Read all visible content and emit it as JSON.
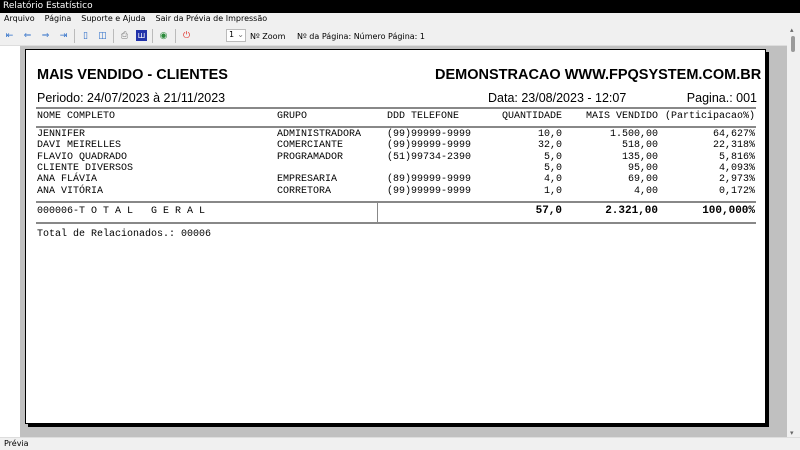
{
  "window": {
    "title": "Relatório Estatístico"
  },
  "menu": [
    "Arquivo",
    "Página",
    "Suporte e Ajuda",
    "Sair da Prévia de Impressão"
  ],
  "toolbar": {
    "zoom_value": "1",
    "zoom_label": "Nº Zoom",
    "page_info": "Nº da Página: Número Página: 1"
  },
  "report": {
    "title": "MAIS VENDIDO - CLIENTES",
    "company": "DEMONSTRACAO WWW.FPQSYSTEM.COM.BR",
    "period": "Periodo: 24/07/2023 à 21/11/2023",
    "date": "Data: 23/08/2023 - 12:07",
    "page": "Pagina.: 001",
    "columns": [
      "NOME COMPLETO",
      "GRUPO",
      "DDD TELEFONE",
      "QUANTIDADE",
      "MAIS VENDIDO",
      "(Participacao%)"
    ],
    "rows": [
      [
        "JENNIFER",
        "ADMINISTRADORA",
        "(99)99999-9999",
        "10,0",
        "1.500,00",
        "64,627%"
      ],
      [
        "DAVI MEIRELLES",
        "COMERCIANTE",
        "(99)99999-9999",
        "32,0",
        "518,00",
        "22,318%"
      ],
      [
        "FLAVIO QUADRADO",
        "PROGRAMADOR",
        "(51)99734-2390",
        "5,0",
        "135,00",
        "5,816%"
      ],
      [
        "CLIENTE DIVERSOS",
        "",
        "",
        "5,0",
        "95,00",
        "4,093%"
      ],
      [
        "ANA FLÁVIA",
        "EMPRESARIA",
        "(89)99999-9999",
        "4,0",
        "69,00",
        "2,973%"
      ],
      [
        "ANA VITÓRIA",
        "CORRETORA",
        "(99)99999-9999",
        "1,0",
        "4,00",
        "0,172%"
      ]
    ],
    "total": {
      "label": "000006-T O T A L   G E R A L",
      "quantidade": "57,0",
      "mais_vendido": "2.321,00",
      "participacao": "100,000%"
    },
    "footer": "Total de Relacionados.: 00006"
  },
  "status": "Prévia"
}
